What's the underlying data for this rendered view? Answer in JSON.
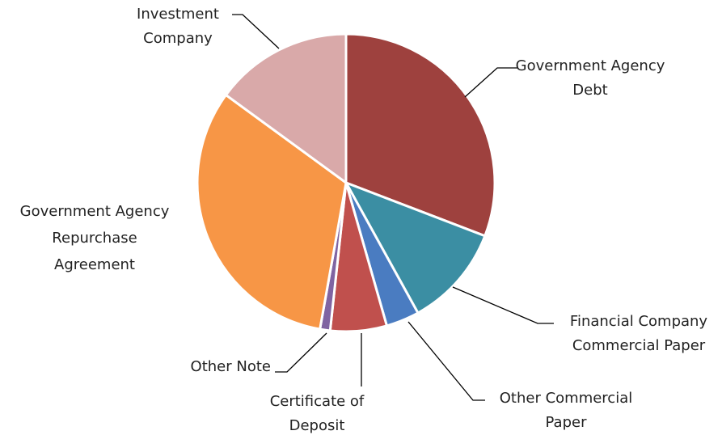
{
  "chart_data": {
    "type": "pie",
    "categories": [
      "Government Agency Debt",
      "Financial Company Commercial Paper",
      "Other Commercial Paper",
      "Certificate of Deposit",
      "Other Note",
      "Government Agency Repurchase Agreement",
      "Investment Company"
    ],
    "values": [
      30.7,
      11.1,
      3.6,
      6.1,
      1.1,
      32.1,
      14.9
    ],
    "colors": [
      "#9e413e",
      "#3b8ea3",
      "#4a7cc1",
      "#c0504d",
      "#8064a2",
      "#f79646",
      "#d9a9a9"
    ]
  }
}
